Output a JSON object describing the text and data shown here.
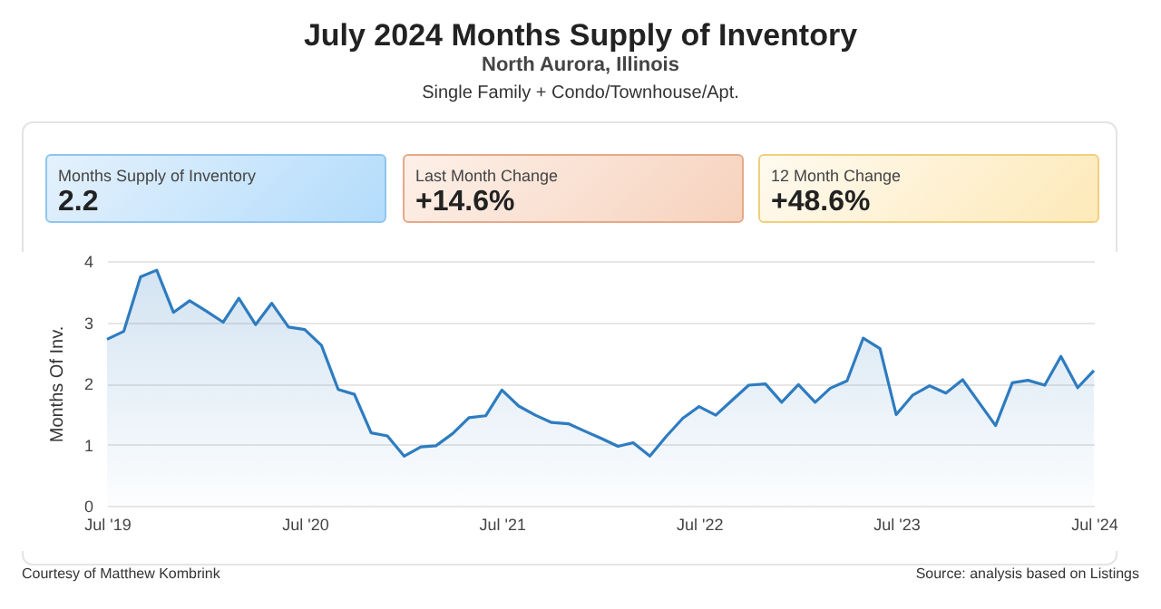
{
  "chart_data": {
    "type": "area",
    "title": "July 2024 Months Supply of Inventory",
    "subtitle": "North Aurora, Illinois",
    "ylabel": "Months Of Inv.",
    "x": [
      "2019-07",
      "2019-08",
      "2019-09",
      "2019-10",
      "2019-11",
      "2019-12",
      "2020-01",
      "2020-02",
      "2020-03",
      "2020-04",
      "2020-05",
      "2020-06",
      "2020-07",
      "2020-08",
      "2020-09",
      "2020-10",
      "2020-11",
      "2020-12",
      "2021-01",
      "2021-02",
      "2021-03",
      "2021-04",
      "2021-05",
      "2021-06",
      "2021-07",
      "2021-08",
      "2021-09",
      "2021-10",
      "2021-11",
      "2021-12",
      "2022-01",
      "2022-02",
      "2022-03",
      "2022-04",
      "2022-05",
      "2022-06",
      "2022-07",
      "2022-08",
      "2022-09",
      "2022-10",
      "2022-11",
      "2022-12",
      "2023-01",
      "2023-02",
      "2023-03",
      "2023-04",
      "2023-05",
      "2023-06",
      "2023-07",
      "2023-08",
      "2023-09",
      "2023-10",
      "2023-11",
      "2023-12",
      "2024-01",
      "2024-02",
      "2024-03",
      "2024-04",
      "2024-05",
      "2024-06",
      "2024-07"
    ],
    "series": [
      {
        "color": "#2e7cc0",
        "values": [
          2.72,
          2.85,
          3.74,
          3.85,
          3.16,
          3.35,
          3.18,
          3.0,
          3.39,
          2.96,
          3.31,
          2.92,
          2.88,
          2.62,
          1.9,
          1.82,
          1.19,
          1.14,
          0.81,
          0.96,
          0.98,
          1.18,
          1.44,
          1.47,
          1.89,
          1.63,
          1.48,
          1.36,
          1.34,
          1.22,
          1.1,
          0.97,
          1.03,
          0.81,
          1.13,
          1.43,
          1.62,
          1.48,
          1.73,
          1.97,
          1.99,
          1.69,
          1.98,
          1.69,
          1.92,
          2.04,
          2.74,
          2.57,
          1.49,
          1.81,
          1.96,
          1.84,
          2.06,
          1.69,
          1.31,
          2.01,
          2.05,
          1.97,
          2.44,
          1.93,
          2.21
        ]
      }
    ],
    "xlim": [
      "2019-07",
      "2024-07"
    ],
    "xticks": [
      {
        "value": "2019-07",
        "label": "Jul '19"
      },
      {
        "value": "2020-07",
        "label": "Jul '20"
      },
      {
        "value": "2021-07",
        "label": "Jul '21"
      },
      {
        "value": "2022-07",
        "label": "Jul '22"
      },
      {
        "value": "2023-07",
        "label": "Jul '23"
      },
      {
        "value": "2024-07",
        "label": "Jul '24"
      }
    ],
    "ylim": [
      0,
      4
    ],
    "yticks": [
      0,
      1,
      2,
      3,
      4
    ],
    "grid": "y",
    "marker": "none",
    "line_style": "solid",
    "annotations": [
      "Single Family + Condo/Townhouse/Apt.",
      "Months Supply of Inventory",
      "2.2",
      "Last Month Change",
      "+14.6%",
      "12 Month Change",
      "+48.6%",
      "Courtesy of Matthew Kombrink",
      "Source: analysis based on Listings"
    ]
  }
}
